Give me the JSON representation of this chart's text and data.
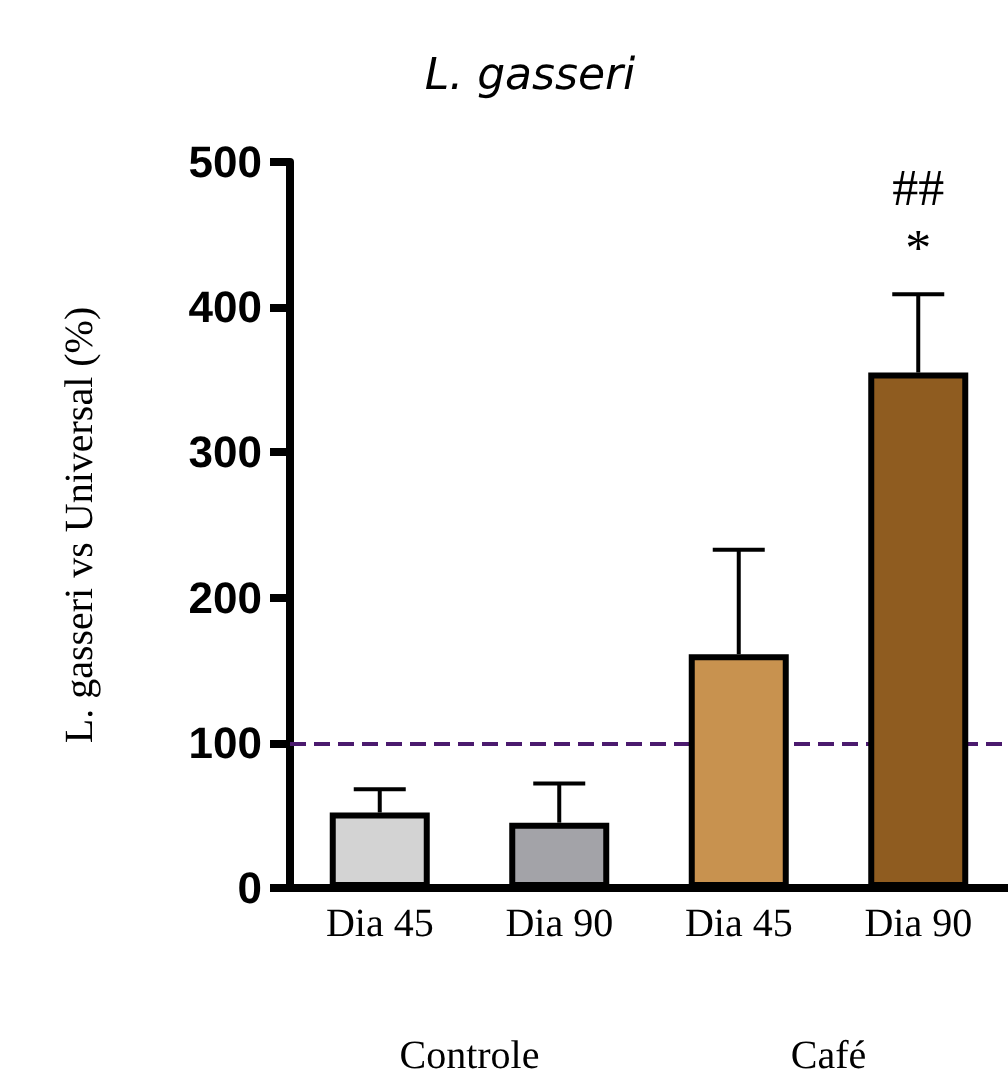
{
  "chart_data": {
    "type": "bar",
    "title": "L. gasseri",
    "ylabel": "L. gasseri vs Universal (%)",
    "categories": [
      "Dia 45",
      "Dia 90",
      "Dia 45",
      "Dia 90"
    ],
    "values": [
      52,
      45,
      161,
      355
    ],
    "colors": [
      "#d3d3d3",
      "#a3a3a8",
      "#c8924f",
      "#8f5c20"
    ],
    "errors": [
      [
        52,
        68
      ],
      [
        45,
        72
      ],
      [
        161,
        233
      ],
      [
        355,
        409
      ]
    ],
    "ylim": [
      0,
      500
    ],
    "yticks": [
      0,
      100,
      200,
      300,
      400,
      500
    ],
    "grid": false,
    "ref_lines": [
      {
        "axis": "y",
        "value": 100,
        "color": "#4b1a6e",
        "line_style": "dashed"
      }
    ],
    "annotations": [
      "##",
      "*",
      "Controle",
      "Café"
    ]
  }
}
